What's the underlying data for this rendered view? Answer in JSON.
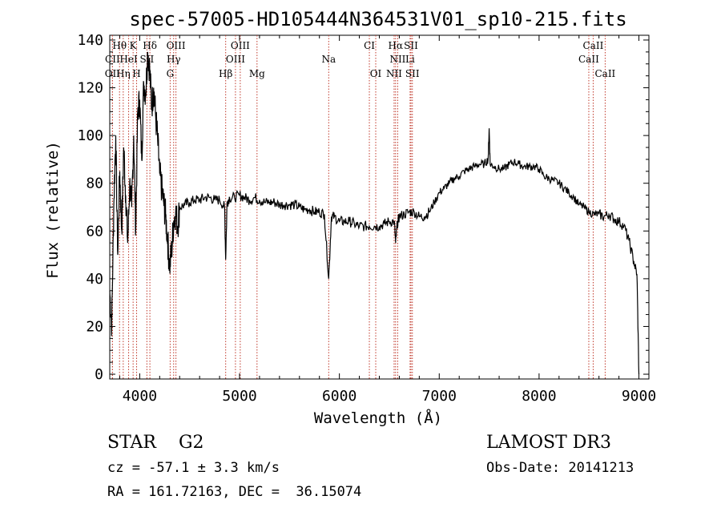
{
  "chart_data": {
    "type": "line",
    "title": "spec-57005-HD105444N364531V01_sp10-215.fits",
    "xlabel": "Wavelength (Å)",
    "ylabel": "Flux (relative)",
    "xlim": [
      3700,
      9100
    ],
    "ylim": [
      -2,
      142
    ],
    "x_ticks": [
      4000,
      5000,
      6000,
      7000,
      8000,
      9000
    ],
    "y_ticks": [
      0,
      20,
      40,
      60,
      80,
      100,
      120,
      140
    ],
    "grid": false,
    "series": [
      {
        "x": [
          3700,
          3720,
          3740,
          3760,
          3780,
          3800,
          3820,
          3840,
          3860,
          3880,
          3900,
          3920,
          3940,
          3960,
          3980,
          4000,
          4020,
          4040,
          4060,
          4080,
          4100,
          4120,
          4140,
          4160,
          4180,
          4200,
          4220,
          4240,
          4260,
          4280,
          4300,
          4320,
          4340,
          4360,
          4380,
          4400,
          4450,
          4500,
          4550,
          4600,
          4650,
          4700,
          4750,
          4800,
          4850,
          4861,
          4875,
          4900,
          4950,
          5000,
          5050,
          5100,
          5150,
          5200,
          5250,
          5300,
          5350,
          5400,
          5450,
          5500,
          5550,
          5600,
          5650,
          5700,
          5750,
          5800,
          5850,
          5893,
          5920,
          5950,
          6000,
          6050,
          6100,
          6150,
          6200,
          6250,
          6300,
          6350,
          6400,
          6450,
          6500,
          6550,
          6563,
          6580,
          6600,
          6650,
          6700,
          6750,
          6800,
          6850,
          6900,
          6950,
          7000,
          7050,
          7100,
          7150,
          7200,
          7250,
          7300,
          7350,
          7400,
          7450,
          7490,
          7500,
          7510,
          7550,
          7600,
          7650,
          7700,
          7750,
          7800,
          7850,
          7900,
          7950,
          8000,
          8050,
          8100,
          8150,
          8200,
          8250,
          8300,
          8350,
          8400,
          8450,
          8500,
          8550,
          8600,
          8650,
          8700,
          8750,
          8800,
          8850,
          8900,
          8950,
          8980,
          9000
        ],
        "y": [
          35,
          20,
          70,
          100,
          50,
          85,
          60,
          95,
          75,
          55,
          80,
          70,
          100,
          60,
          110,
          115,
          90,
          122,
          118,
          135,
          128,
          112,
          120,
          108,
          98,
          84,
          78,
          72,
          66,
          56,
          45,
          52,
          64,
          68,
          62,
          70,
          71,
          72,
          73,
          73,
          74,
          74,
          73,
          73,
          70,
          48,
          72,
          74,
          74,
          75,
          74,
          73,
          74,
          73,
          72,
          72,
          72,
          71,
          71,
          71,
          71,
          70,
          69,
          69,
          68,
          68,
          67,
          40,
          66,
          66,
          64,
          64,
          64,
          63,
          62,
          62,
          62,
          62,
          62,
          63,
          64,
          64,
          55,
          63,
          66,
          67,
          68,
          68,
          66,
          66,
          68,
          72,
          76,
          78,
          80,
          82,
          83,
          85,
          86,
          87,
          88,
          88,
          90,
          103,
          88,
          87,
          86,
          86,
          88,
          89,
          88,
          87,
          87,
          87,
          86,
          83,
          82,
          81,
          80,
          78,
          76,
          74,
          71,
          70,
          68,
          67,
          67,
          66,
          67,
          65,
          64,
          62,
          56,
          47,
          42,
          0
        ]
      }
    ],
    "spectral_lines": [
      {
        "label": "Hθ",
        "x": 3798,
        "row": 1
      },
      {
        "label": "K",
        "x": 3934,
        "row": 1
      },
      {
        "label": "Hδ",
        "x": 4102,
        "row": 1
      },
      {
        "label": "OIII",
        "x": 4363,
        "row": 1
      },
      {
        "label": "OIII",
        "x": 5007,
        "row": 1
      },
      {
        "label": "CI",
        "x": 6300,
        "row": 1
      },
      {
        "label": "Hα",
        "x": 6563,
        "row": 1
      },
      {
        "label": "SII",
        "x": 6717,
        "row": 1
      },
      {
        "label": "CaII",
        "x": 8542,
        "row": 1
      },
      {
        "label": "CII",
        "x": 3727,
        "row": 2
      },
      {
        "label": "HeI",
        "x": 3889,
        "row": 2
      },
      {
        "label": "SII",
        "x": 4072,
        "row": 2
      },
      {
        "label": "Hγ",
        "x": 4340,
        "row": 2
      },
      {
        "label": "OIII",
        "x": 4959,
        "row": 2
      },
      {
        "label": "Na",
        "x": 5893,
        "row": 2
      },
      {
        "label": "NII",
        "x": 6584,
        "row": 2
      },
      {
        "label": "Li",
        "x": 6708,
        "row": 2
      },
      {
        "label": "CaII",
        "x": 8498,
        "row": 2
      },
      {
        "label": "OII",
        "x": 3727,
        "row": 3
      },
      {
        "label": "Hη",
        "x": 3835,
        "row": 3
      },
      {
        "label": "H",
        "x": 3969,
        "row": 3
      },
      {
        "label": "G",
        "x": 4305,
        "row": 3
      },
      {
        "label": "Hβ",
        "x": 4861,
        "row": 3
      },
      {
        "label": "Mg",
        "x": 5175,
        "row": 3
      },
      {
        "label": "OI",
        "x": 6364,
        "row": 3
      },
      {
        "label": "NII",
        "x": 6548,
        "row": 3
      },
      {
        "label": "SII",
        "x": 6731,
        "row": 3
      },
      {
        "label": "CaII",
        "x": 8662,
        "row": 3
      }
    ],
    "line_color": "#c0392b"
  },
  "info": {
    "class": "STAR    G2",
    "survey": "LAMOST DR3",
    "cz": "cz = -57.1 ± 3.3 km/s",
    "obsdate": "Obs-Date: 20141213",
    "radec": "RA = 161.72163, DEC =  36.15074"
  }
}
